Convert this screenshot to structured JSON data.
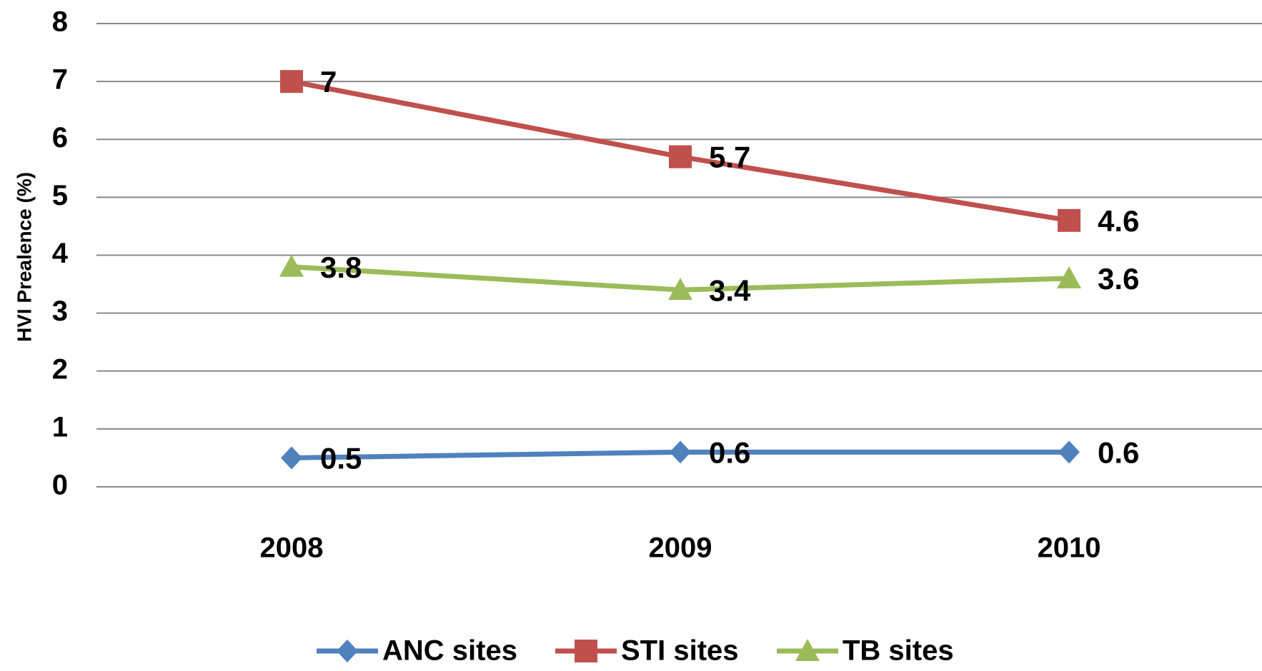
{
  "chart_data": {
    "type": "line",
    "y_label": "HVI Prealence (%)",
    "categories": [
      "2008",
      "2009",
      "2010"
    ],
    "series": [
      {
        "name": "ANC sites",
        "color": "#4f81bd",
        "marker": "diamond",
        "values": [
          0.5,
          0.6,
          0.6
        ]
      },
      {
        "name": "STI sites",
        "color": "#c0504d",
        "marker": "square",
        "values": [
          7,
          5.7,
          4.6
        ]
      },
      {
        "name": "TB sites",
        "color": "#9bbb59",
        "marker": "triangle",
        "values": [
          3.8,
          3.4,
          3.6
        ]
      }
    ],
    "ylim": [
      0,
      8
    ],
    "yticks": [
      0,
      1,
      2,
      3,
      4,
      5,
      6,
      7,
      8
    ],
    "grid": true,
    "legend": "bottom"
  }
}
